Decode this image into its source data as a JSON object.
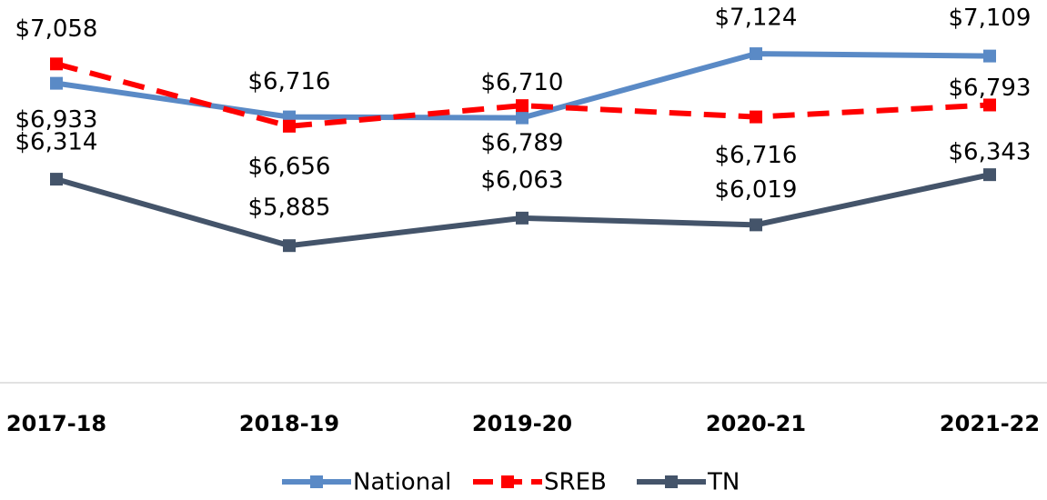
{
  "chart_data": {
    "type": "line",
    "categories": [
      "2017-18",
      "2018-19",
      "2019-20",
      "2020-21",
      "2021-22"
    ],
    "series": [
      {
        "name": "National",
        "color": "#5a8ac6",
        "dash": false,
        "values": [
          6933,
          6716,
          6710,
          7124,
          7109
        ],
        "value_labels": [
          "$6,933",
          "$6,716",
          "$6,710",
          "$7,124",
          "$7,109"
        ]
      },
      {
        "name": "SREB",
        "color": "#ff0000",
        "dash": true,
        "values": [
          7058,
          6656,
          6789,
          6716,
          6793
        ],
        "value_labels": [
          "$7,058",
          "$6,656",
          "$6,789",
          "$6,716",
          "$6,793"
        ]
      },
      {
        "name": "TN",
        "color": "#44546a",
        "dash": false,
        "values": [
          6314,
          5885,
          6063,
          6019,
          6343
        ],
        "value_labels": [
          "$6,314",
          "$5,885",
          "$6,063",
          "$6,019",
          "$6,343"
        ]
      }
    ],
    "ylim": [
      5000,
      7500
    ],
    "legend": "bottom"
  }
}
